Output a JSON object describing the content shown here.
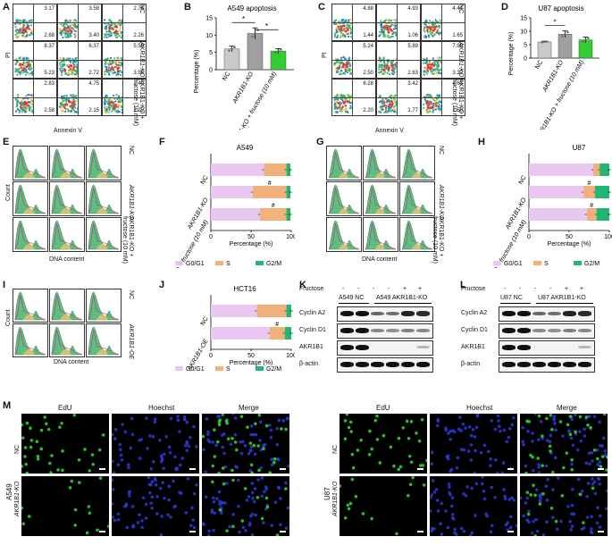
{
  "panels": {
    "A": {
      "label": "A",
      "ylabel": "PI",
      "xlabel": "Annexin V",
      "rows": [
        {
          "label": "NC",
          "cells": [
            [
              "3.17",
              "2.68"
            ],
            [
              "3.58",
              "3.40"
            ],
            [
              "2.76",
              "2.26"
            ]
          ]
        },
        {
          "label": "AKR1B1-KO",
          "cells": [
            [
              "8.37",
              "5.23"
            ],
            [
              "6.37",
              "2.72"
            ],
            [
              "5.59",
              "3.56"
            ]
          ]
        },
        {
          "label": "AKR1B1-KO + fructose (10 mM)",
          "cells": [
            [
              "2.83",
              "2.58"
            ],
            [
              "4.75",
              "2.15"
            ],
            [
              "2.40",
              "2.22"
            ]
          ]
        }
      ]
    },
    "B": {
      "label": "B",
      "title": "A549 apoptosis",
      "chart_data": {
        "type": "bar",
        "title": "A549 apoptosis",
        "ylabel": "Percentage (%)",
        "categories": [
          "NC",
          "AKR1B1-KO",
          "AKR1B1-KO + fructose (10 mM)"
        ],
        "values": [
          6.0,
          10.5,
          5.4
        ],
        "errors": [
          0.8,
          1.6,
          0.7
        ],
        "ylim": [
          0,
          15
        ],
        "yticks": [
          "0",
          "5",
          "10",
          "15"
        ],
        "colors": [
          "#c9c9c9",
          "#a0a0a0",
          "#33cc33"
        ],
        "sig": [
          "*",
          "*"
        ]
      }
    },
    "C": {
      "label": "C",
      "ylabel": "PI",
      "xlabel": "Annexin V",
      "rows": [
        {
          "label": "NC",
          "cells": [
            [
              "4.88",
              "1.44"
            ],
            [
              "4.93",
              "1.06"
            ],
            [
              "4.41",
              "1.65"
            ]
          ]
        },
        {
          "label": "AKR1B1-KO",
          "cells": [
            [
              "5.24",
              "2.50"
            ],
            [
              "5.89",
              "2.63"
            ],
            [
              "7.98",
              "3.32"
            ]
          ]
        },
        {
          "label": "AKR1B1-KO + fructose (10 mM)",
          "cells": [
            [
              "6.28",
              "2.20"
            ],
            [
              "3.42",
              "1.77"
            ],
            [
              "4.63",
              "1.58"
            ]
          ]
        }
      ]
    },
    "D": {
      "label": "D",
      "title": "U87 apoptosis",
      "chart_data": {
        "type": "bar",
        "title": "U87 apoptosis",
        "ylabel": "Percentage (%)",
        "categories": [
          "NC",
          "AKR1B1-KO",
          "AKR1B1-KO + fructose (10 mM)"
        ],
        "values": [
          6.0,
          8.9,
          6.8
        ],
        "errors": [
          0.3,
          1.2,
          1.0
        ],
        "ylim": [
          0,
          15
        ],
        "yticks": [
          "0",
          "5",
          "10",
          "15"
        ],
        "colors": [
          "#c9c9c9",
          "#a0a0a0",
          "#33cc33"
        ],
        "sig": [
          "*"
        ]
      }
    },
    "E": {
      "label": "E",
      "ylabel": "Count",
      "xlabel": "DNA content",
      "rows": [
        "NC",
        "AKR1B1-KO",
        "AKR1B1-KO + fructose (10 mM)"
      ]
    },
    "F": {
      "label": "F",
      "title": "A549",
      "chart_data": {
        "type": "bar",
        "orientation": "horizontal-stacked",
        "title": "A549",
        "xlabel": "Percentage (%)",
        "categories": [
          "NC",
          "AKR1B1-KO",
          "AKR1B1-KO + fructose (10 mM)"
        ],
        "series": [
          {
            "name": "G0/G1",
            "values": [
              66,
              52,
              61
            ]
          },
          {
            "name": "S",
            "values": [
              28,
              42,
              33
            ]
          },
          {
            "name": "G2/M",
            "values": [
              5,
              5,
              5
            ]
          }
        ],
        "xlim": [
          0,
          100
        ],
        "xticks": [
          "0",
          "50",
          "100"
        ],
        "colors": [
          "#e8c8f0",
          "#f2b07a",
          "#22b573"
        ],
        "sig": [
          "",
          "#",
          "#"
        ]
      }
    },
    "G": {
      "label": "G",
      "xlabel": "DNA content",
      "rows": [
        "NC",
        "AKR1B1-KO",
        "AKR1B1-KO + fructose (10 mM)"
      ]
    },
    "H": {
      "label": "H",
      "title": "U87",
      "chart_data": {
        "type": "bar",
        "orientation": "horizontal-stacked",
        "title": "U87",
        "xlabel": "Percentage (%)",
        "categories": [
          "NC",
          "AKR1B1-KO",
          "AKR1B1-KO + fructose (10 mM)"
        ],
        "series": [
          {
            "name": "G0/G1",
            "values": [
              80,
              68,
              72
            ]
          },
          {
            "name": "S",
            "values": [
              8,
              14,
              12
            ]
          },
          {
            "name": "G2/M",
            "values": [
              12,
              18,
              16
            ]
          }
        ],
        "xlim": [
          0,
          100
        ],
        "xticks": [
          "0",
          "50",
          "100"
        ],
        "colors": [
          "#e8c8f0",
          "#f2b07a",
          "#22b573"
        ],
        "sig": [
          "",
          "#",
          "#"
        ]
      }
    },
    "I": {
      "label": "I",
      "ylabel": "Count",
      "xlabel": "DNA content",
      "rows": [
        "NC",
        "AKR1B1-OE"
      ]
    },
    "J": {
      "label": "J",
      "title": "HCT16",
      "chart_data": {
        "type": "bar",
        "orientation": "horizontal-stacked",
        "title": "HCT16",
        "xlabel": "Percentage (%)",
        "categories": [
          "NC",
          "AKR1B1-OE"
        ],
        "series": [
          {
            "name": "G0/G1",
            "values": [
              57,
              73
            ]
          },
          {
            "name": "S",
            "values": [
              37,
              19
            ]
          },
          {
            "name": "G2/M",
            "values": [
              6,
              8
            ]
          }
        ],
        "xlim": [
          0,
          100
        ],
        "xticks": [
          "0",
          "50",
          "100"
        ],
        "colors": [
          "#e8c8f0",
          "#f2b07a",
          "#22b573"
        ],
        "sig": [
          "",
          "#"
        ]
      }
    },
    "K": {
      "label": "K",
      "fructose_label": "Fructose",
      "fructose_signs": [
        "-",
        "-",
        "-",
        "-",
        "+",
        "+"
      ],
      "group1": "A549 NC",
      "group2": "A549 AKR1B1-KO",
      "rows": [
        "Cyclin A2",
        "Cyclin D1",
        "AKR1B1",
        "β-actin"
      ]
    },
    "L": {
      "label": "L",
      "fructose_label": "Fructose",
      "fructose_signs": [
        "-",
        "-",
        "-",
        "-",
        "+",
        "+"
      ],
      "group1": "U87 NC",
      "group2": "U87 AKR1B1-KO",
      "rows": [
        "Cyclin A2",
        "Cyclin D1",
        "AKR1B1",
        "β-actin"
      ]
    },
    "M": {
      "label": "M",
      "left": {
        "cell": "A549",
        "cols": [
          "EdU",
          "Hoechst",
          "Merge"
        ],
        "rows": [
          "NC",
          "AKR1B1-KO"
        ]
      },
      "right": {
        "cell": "U87",
        "cols": [
          "EdU",
          "Hoechst",
          "Merge"
        ],
        "rows": [
          "NC",
          "AKR1B1-KO"
        ]
      }
    }
  },
  "colors": {
    "g0g1": "#e8c8f0",
    "s": "#f2b07a",
    "g2m": "#22b573",
    "edu": "#2fd02f",
    "hoechst": "#2a3ad8"
  }
}
